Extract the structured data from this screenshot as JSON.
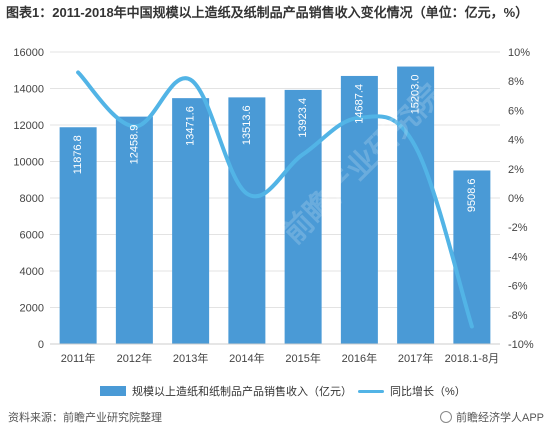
{
  "title": "图表1：2011-2018年中国规模以上造纸及纸制品产品销售收入变化情况（单位：亿元，%）",
  "source": "资料来源：前瞻产业研究院整理",
  "brand": "前瞻经济学人APP",
  "watermark": "前瞻产业研究院",
  "colors": {
    "bar": "#4a9ad6",
    "line": "#52b4e6",
    "grid": "#e3e3e3",
    "axis_text": "#444444"
  },
  "chart_data": {
    "type": "bar+line",
    "categories": [
      "2011年",
      "2012年",
      "2013年",
      "2014年",
      "2015年",
      "2016年",
      "2017年",
      "2018.1-8月"
    ],
    "series": [
      {
        "name": "规模以上造纸和纸制品产品销售收入（亿元）",
        "type": "bar",
        "axis": "left",
        "values": [
          11876.8,
          12458.9,
          13471.6,
          13513.6,
          13923.4,
          14687.4,
          15203.0,
          9508.6
        ],
        "labels": [
          "11876.8",
          "12458.9",
          "13471.6",
          "13513.6",
          "13923.4",
          "14687.4",
          "15203.0",
          "9508.6"
        ]
      },
      {
        "name": "同比增长（%）",
        "type": "line",
        "axis": "right",
        "values": [
          8.6,
          4.9,
          8.1,
          0.3,
          3.0,
          5.5,
          3.5,
          -8.8
        ]
      }
    ],
    "y_left": {
      "min": 0,
      "max": 16000,
      "ticks": [
        "0",
        "2000",
        "4000",
        "6000",
        "8000",
        "10000",
        "12000",
        "14000",
        "16000"
      ]
    },
    "y_right": {
      "min": -10,
      "max": 10,
      "ticks": [
        "-10%",
        "-8%",
        "-6%",
        "-4%",
        "-2%",
        "0%",
        "2%",
        "4%",
        "6%",
        "8%",
        "10%"
      ]
    },
    "grid": true,
    "legend": "bottom"
  }
}
